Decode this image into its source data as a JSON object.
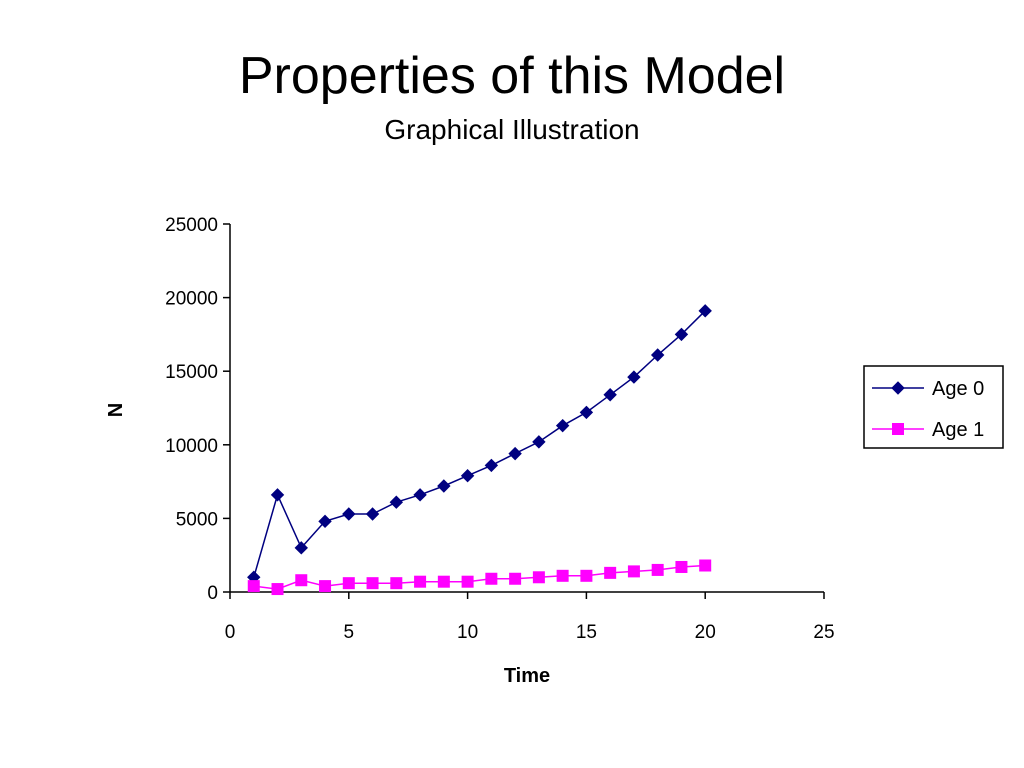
{
  "slide": {
    "title": "Properties of this Model",
    "subtitle": "Graphical Illustration"
  },
  "chart_data": {
    "type": "line",
    "xlabel": "Time",
    "ylabel": "N",
    "xlim": [
      0,
      25
    ],
    "ylim": [
      0,
      25000
    ],
    "xticks": [
      0,
      5,
      10,
      15,
      20,
      25
    ],
    "yticks": [
      0,
      5000,
      10000,
      15000,
      20000,
      25000
    ],
    "grid": false,
    "legend_position": "right",
    "x": [
      1,
      2,
      3,
      4,
      5,
      6,
      7,
      8,
      9,
      10,
      11,
      12,
      13,
      14,
      15,
      16,
      17,
      18,
      19,
      20
    ],
    "series": [
      {
        "name": "Age 0",
        "color": "#000080",
        "marker": "diamond",
        "values": [
          1000,
          6600,
          3000,
          4800,
          5300,
          5300,
          6100,
          6600,
          7200,
          7900,
          8600,
          9400,
          10200,
          11300,
          12200,
          13400,
          14600,
          16100,
          17500,
          19100
        ]
      },
      {
        "name": "Age 1",
        "color": "#ff00ff",
        "marker": "square",
        "values": [
          400,
          200,
          800,
          400,
          600,
          600,
          600,
          700,
          700,
          700,
          900,
          900,
          1000,
          1100,
          1100,
          1300,
          1400,
          1500,
          1700,
          1800
        ]
      }
    ]
  }
}
